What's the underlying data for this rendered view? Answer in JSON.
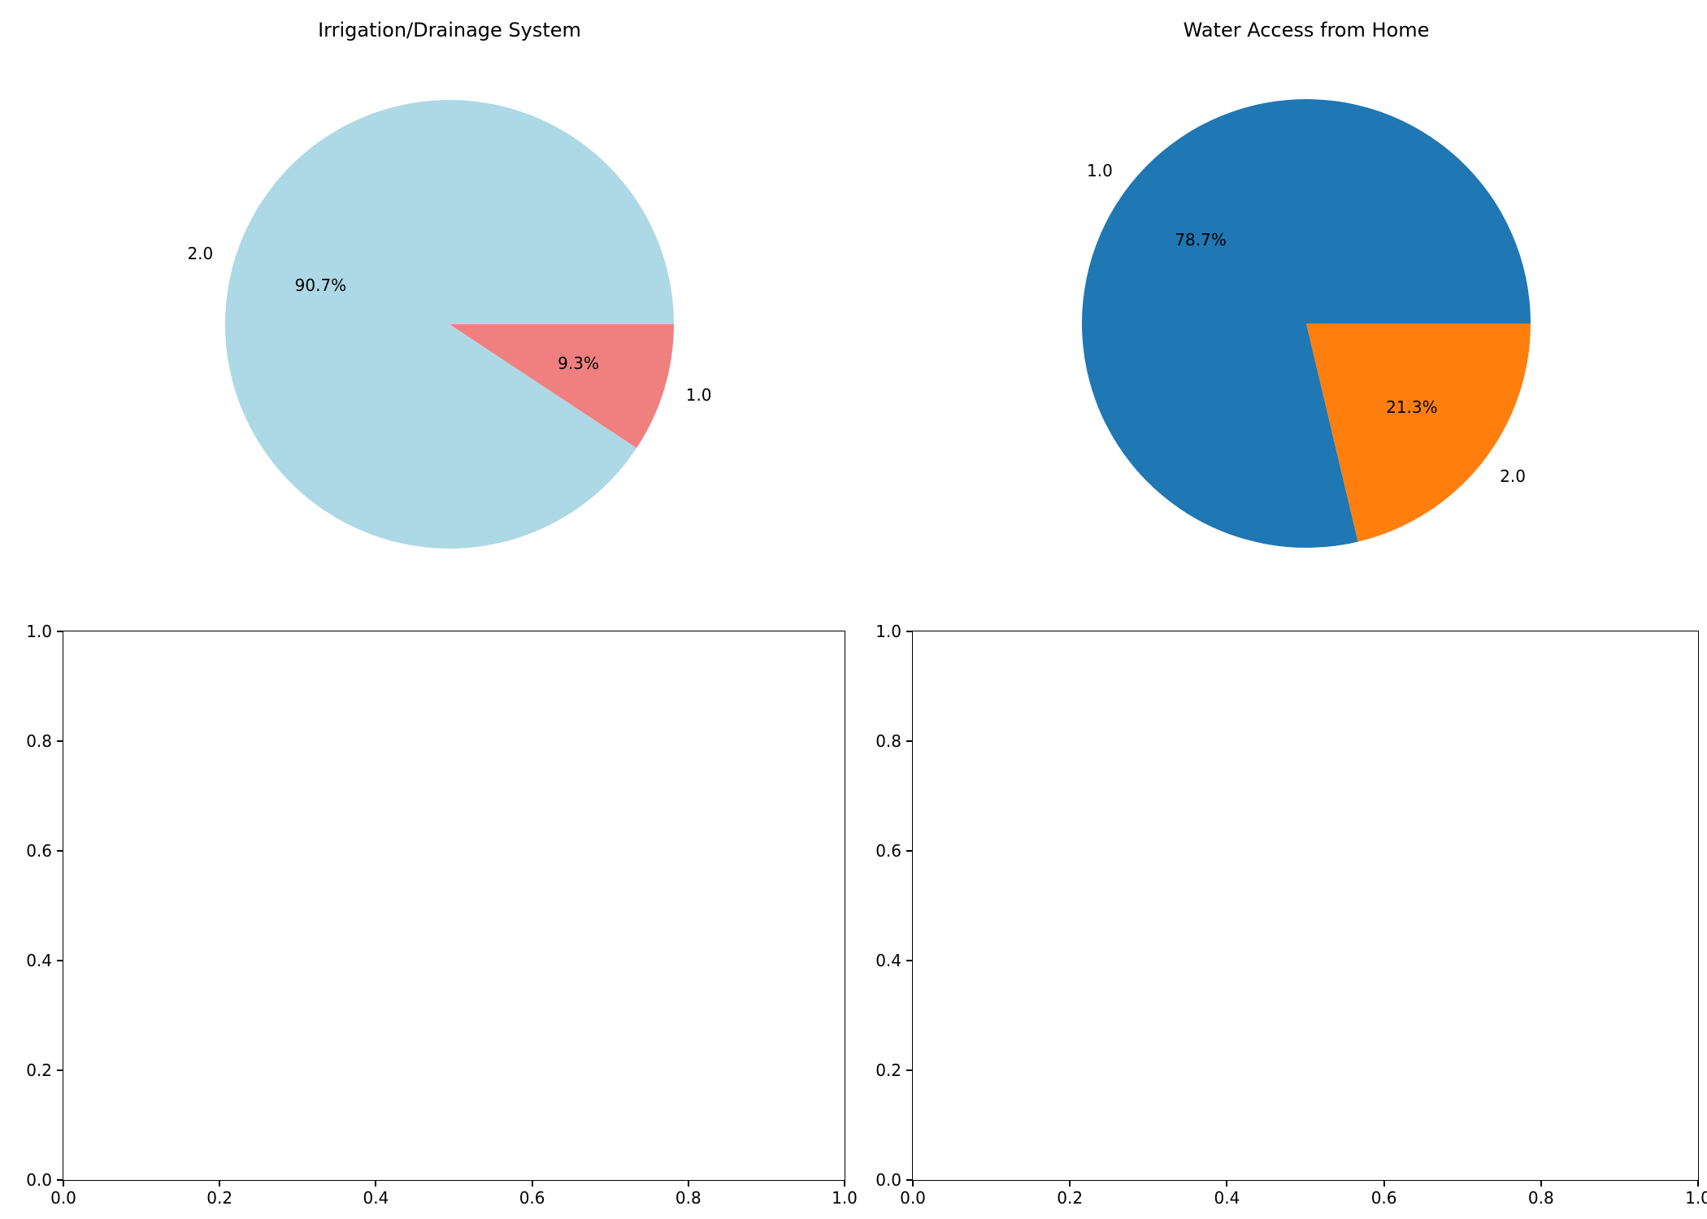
{
  "figure": {
    "background": "#ffffff",
    "text_color": "#000000"
  },
  "chart_data": [
    {
      "type": "pie",
      "title": "Irrigation/Drainage System",
      "labels": [
        "2.0",
        "1.0"
      ],
      "values": [
        90.7,
        9.3
      ],
      "percent_labels": [
        "90.7%",
        "9.3%"
      ],
      "colors": [
        "#add8e6",
        "#f08080"
      ],
      "start_angle": 0,
      "direction": "counterclockwise",
      "label_distance": 1.1,
      "pct_distance": 0.6,
      "legend": "none"
    },
    {
      "type": "pie",
      "title": "Water Access from Home",
      "labels": [
        "1.0",
        "2.0"
      ],
      "values": [
        78.7,
        21.3
      ],
      "percent_labels": [
        "78.7%",
        "21.3%"
      ],
      "colors": [
        "#1f77b4",
        "#ff7f0e"
      ],
      "start_angle": 0,
      "direction": "counterclockwise",
      "label_distance": 1.1,
      "pct_distance": 0.6,
      "legend": "none"
    },
    {
      "type": "empty_axes",
      "title": "",
      "x_ticks": [
        "0.0",
        "0.2",
        "0.4",
        "0.6",
        "0.8",
        "1.0"
      ],
      "y_ticks": [
        "0.0",
        "0.2",
        "0.4",
        "0.6",
        "0.8",
        "1.0"
      ],
      "xlim": [
        0,
        1
      ],
      "ylim": [
        0,
        1
      ],
      "grid": false
    },
    {
      "type": "empty_axes",
      "title": "",
      "x_ticks": [
        "0.0",
        "0.2",
        "0.4",
        "0.6",
        "0.8",
        "1.0"
      ],
      "y_ticks": [
        "0.0",
        "0.2",
        "0.4",
        "0.6",
        "0.8",
        "1.0"
      ],
      "xlim": [
        0,
        1
      ],
      "ylim": [
        0,
        1
      ],
      "grid": false
    }
  ]
}
